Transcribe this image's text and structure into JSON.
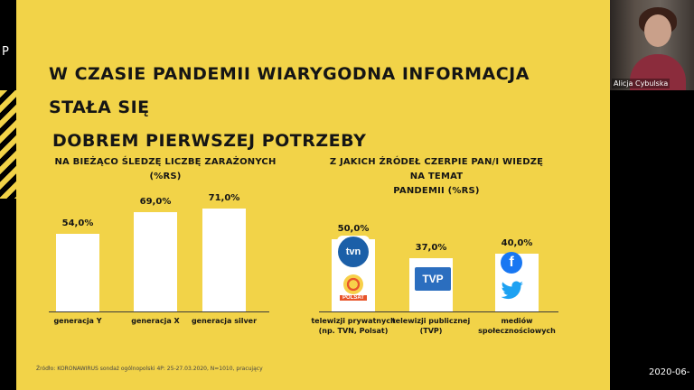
{
  "left_edge": {
    "letter": "P"
  },
  "slide": {
    "title_line1": "W CZASIE PANDEMII WIARYGODNA INFORMACJA STAŁA SIĘ",
    "title_line2": "DOBREM PIERWSZEJ POTRZEBY",
    "left_chart": {
      "title": "NA BIEŻĄCO ŚLEDZĘ LICZBĘ ZARAŻONYCH (%RS)",
      "labels": [
        "54,0%",
        "69,0%",
        "71,0%"
      ],
      "categories": [
        "generacja Y",
        "generacja X",
        "generacja silver"
      ]
    },
    "right_chart": {
      "title_line1": "Z JAKICH ŹRÓDEŁ CZERPIE PAN/I WIEDZĘ NA TEMAT",
      "title_line2": "PANDEMII (%RS)",
      "labels": [
        "50,0%",
        "37,0%",
        "40,0%"
      ],
      "categories": [
        "telewizji prywatnych (np. TVN, Polsat)",
        "telewizji publicznej (TVP)",
        "mediów społecznościowych"
      ],
      "logos": {
        "tvn": "tvn",
        "polsat": "POLSAT",
        "tvp": "TVP",
        "facebook": "f"
      }
    },
    "source": "Źródło: KORONAWIRUS sondaż ogólnopolski 4P: 25-27.03.2020, N=1010, pracujący"
  },
  "chart_data": [
    {
      "type": "bar",
      "title": "NA BIEŻĄCO ŚLEDZĘ LICZBĘ ZARAŻONYCH (%RS)",
      "categories": [
        "generacja Y",
        "generacja X",
        "generacja silver"
      ],
      "values": [
        54.0,
        69.0,
        71.0
      ],
      "ylim": [
        0,
        100
      ]
    },
    {
      "type": "bar",
      "title": "Z JAKICH ŹRÓDEŁ CZERPIE PAN/I WIEDZĘ NA TEMAT PANDEMII (%RS)",
      "categories": [
        "telewizji prywatnych (np. TVN, Polsat)",
        "telewizji publicznej (TVP)",
        "mediów społecznościowych"
      ],
      "values": [
        50.0,
        37.0,
        40.0
      ],
      "ylim": [
        0,
        100
      ]
    }
  ],
  "participant": {
    "name": "Alicja Cybulska"
  },
  "footer": {
    "date": "2020-06-"
  },
  "colors": {
    "slide_bg": "#f2d348",
    "bar": "#ffffff",
    "text": "#151515",
    "tvn_blue": "#1b5fa8",
    "polsat": "#e8542a",
    "tvp_blue": "#2b6ebf",
    "facebook": "#1877f2",
    "twitter": "#1da1f2"
  }
}
